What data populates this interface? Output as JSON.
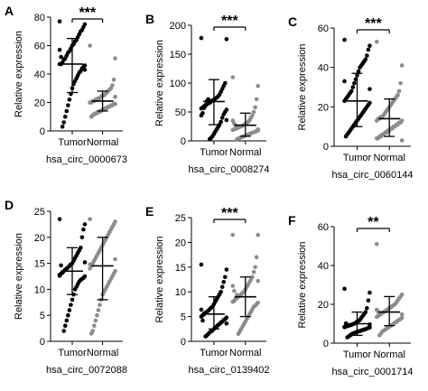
{
  "colors": {
    "tumor": "#000000",
    "normal": "#8c8c8c",
    "axis": "#000000",
    "text": "#000000"
  },
  "chart_data": [
    {
      "type": "scatter",
      "panel_label": "A",
      "xlabel": "hsa_circ_0000673",
      "ylabel": "Relative expression",
      "categories": [
        "Tumor",
        "Normal"
      ],
      "ylim": [
        0,
        80
      ],
      "yticks": [
        0,
        20,
        40,
        60,
        80
      ],
      "significance": "***",
      "series": [
        {
          "name": "Tumor",
          "mean": 47,
          "sd_low": 27,
          "sd_high": 65,
          "values": [
            77,
            75,
            73,
            71,
            70,
            68,
            66,
            64,
            63,
            61,
            60,
            58,
            56,
            55,
            53,
            51,
            50,
            48,
            47,
            47,
            46,
            45,
            44,
            42,
            41,
            39,
            37,
            35,
            33,
            30,
            26,
            22,
            18,
            14,
            10,
            6,
            3,
            52,
            57,
            43
          ]
        },
        {
          "name": "Normal",
          "mean": 21,
          "sd_low": 14,
          "sd_high": 28,
          "values": [
            60,
            51,
            36,
            32,
            30,
            29,
            28,
            27,
            26,
            25,
            25,
            24,
            23,
            23,
            22,
            22,
            21,
            21,
            20,
            20,
            19,
            19,
            18,
            18,
            17,
            17,
            16,
            16,
            15,
            15,
            14,
            14,
            13,
            13,
            12,
            12,
            11,
            10,
            20,
            24
          ]
        }
      ]
    },
    {
      "type": "scatter",
      "panel_label": "B",
      "xlabel": "hsa_circ_0008274",
      "ylabel": "Relative expression",
      "categories": [
        "Tumor",
        "Normal"
      ],
      "ylim": [
        0,
        200
      ],
      "yticks": [
        0,
        50,
        100,
        150,
        200
      ],
      "significance": "***",
      "series": [
        {
          "name": "Tumor",
          "mean": 68,
          "sd_low": 28,
          "sd_high": 106,
          "values": [
            178,
            176,
            100,
            95,
            90,
            85,
            80,
            77,
            75,
            73,
            71,
            70,
            68,
            66,
            65,
            63,
            62,
            60,
            58,
            56,
            54,
            50,
            46,
            40,
            33,
            28,
            24,
            20,
            16,
            12,
            8,
            5,
            3,
            72,
            69,
            61,
            57,
            48,
            44,
            36
          ]
        },
        {
          "name": "Normal",
          "mean": 27,
          "sd_low": 8,
          "sd_high": 48,
          "values": [
            110,
            95,
            72,
            58,
            50,
            44,
            40,
            36,
            33,
            31,
            29,
            28,
            26,
            25,
            24,
            23,
            22,
            21,
            20,
            19,
            18,
            17,
            16,
            15,
            14,
            13,
            12,
            11,
            10,
            9,
            8,
            7,
            6,
            5,
            4,
            3,
            27,
            30,
            35,
            20
          ]
        }
      ]
    },
    {
      "type": "scatter",
      "panel_label": "C",
      "xlabel": "hsa_circ_0060144",
      "ylabel": "Relative expression",
      "categories": [
        "Tumor",
        "Normal"
      ],
      "ylim": [
        0,
        60
      ],
      "yticks": [
        0,
        20,
        40,
        60
      ],
      "significance": "***",
      "series": [
        {
          "name": "Tumor",
          "mean": 23,
          "sd_low": 10,
          "sd_high": 37,
          "values": [
            54,
            51,
            49,
            46,
            44,
            43,
            42,
            41,
            40,
            38,
            36,
            34,
            32,
            30,
            28,
            27,
            26,
            25,
            24,
            23,
            22,
            21,
            20,
            19,
            18,
            17,
            16,
            15,
            14,
            13,
            12,
            11,
            10,
            9,
            8,
            7,
            6,
            5,
            33,
            29
          ]
        },
        {
          "name": "Normal",
          "mean": 14,
          "sd_low": 5,
          "sd_high": 24,
          "values": [
            53,
            41,
            32,
            28,
            26,
            25,
            24,
            23,
            22,
            21,
            20,
            19,
            18,
            17,
            16,
            15,
            15,
            14,
            14,
            13,
            13,
            12,
            12,
            11,
            11,
            10,
            10,
            9,
            9,
            8,
            8,
            7,
            7,
            6,
            6,
            5,
            5,
            4,
            4,
            3
          ]
        }
      ]
    },
    {
      "type": "scatter",
      "panel_label": "D",
      "xlabel": "hsa_circ_0072088",
      "ylabel": "Relative expression",
      "categories": [
        "Tumor",
        "Normal"
      ],
      "ylim": [
        0,
        25
      ],
      "yticks": [
        0,
        5,
        10,
        15,
        20,
        25
      ],
      "significance": "",
      "series": [
        {
          "name": "Tumor",
          "mean": 13.5,
          "sd_low": 9,
          "sd_high": 18,
          "values": [
            23.5,
            22.5,
            21.5,
            20,
            18,
            17.5,
            17,
            16.5,
            16,
            15.5,
            15,
            14.8,
            14.5,
            14.2,
            14,
            13.8,
            13.5,
            13.2,
            13,
            12.8,
            12.5,
            12.2,
            12,
            11.8,
            11.5,
            11,
            10.5,
            10,
            9,
            8,
            7,
            6,
            5,
            4,
            3,
            2,
            13.3,
            14.6,
            12.6,
            15.2
          ]
        },
        {
          "name": "Normal",
          "mean": 14.5,
          "sd_low": 8,
          "sd_high": 20,
          "values": [
            23.5,
            23,
            22.5,
            22,
            21.5,
            21,
            20.5,
            20,
            19.5,
            19,
            18.5,
            18,
            17.5,
            17,
            16.5,
            16,
            15.5,
            15,
            14.5,
            14,
            13.5,
            13,
            12.5,
            12,
            11.5,
            11,
            10.5,
            10,
            9.5,
            9,
            8,
            7,
            6,
            5,
            4,
            3,
            2,
            1.5,
            14.8,
            15.8
          ]
        }
      ]
    },
    {
      "type": "scatter",
      "panel_label": "E",
      "xlabel": "hsa_circ_0139402",
      "ylabel": "Relative expression",
      "categories": [
        "Tumor",
        "Normal"
      ],
      "ylim": [
        0,
        25
      ],
      "yticks": [
        0,
        5,
        10,
        15,
        20,
        25
      ],
      "significance": "***",
      "series": [
        {
          "name": "Tumor",
          "mean": 5.5,
          "sd_low": 2.5,
          "sd_high": 9,
          "values": [
            15.5,
            14.5,
            13,
            12,
            11,
            10,
            9.5,
            9,
            8.5,
            8,
            7.5,
            7,
            6.8,
            6.5,
            6.2,
            6,
            5.8,
            5.5,
            5.3,
            5,
            4.8,
            4.5,
            4.3,
            4,
            3.8,
            3.5,
            3.3,
            3,
            2.8,
            2.5,
            2.2,
            2,
            1.8,
            1.5,
            1.2,
            1,
            5.6,
            4.2,
            6.4,
            3.6
          ]
        },
        {
          "name": "Normal",
          "mean": 9,
          "sd_low": 5,
          "sd_high": 13,
          "values": [
            21.5,
            21.5,
            17,
            15,
            14,
            13,
            12.5,
            12,
            11.5,
            11,
            10.5,
            10,
            9.8,
            9.5,
            9.2,
            9,
            8.8,
            8.5,
            8.2,
            8,
            7.8,
            7.5,
            7.2,
            7,
            6.5,
            6,
            5.5,
            5,
            4.5,
            4,
            3.5,
            3,
            2.5,
            2,
            1.5,
            9.4,
            8.6,
            10.2,
            11.2,
            12.2
          ]
        }
      ]
    },
    {
      "type": "scatter",
      "panel_label": "F",
      "xlabel": "hsa_circ_0001714",
      "ylabel": "Relative expression",
      "categories": [
        "Tumor",
        "Normal"
      ],
      "ylim": [
        0,
        60
      ],
      "yticks": [
        0,
        20,
        40,
        60
      ],
      "significance": "**",
      "series": [
        {
          "name": "Tumor",
          "mean": 10,
          "sd_low": 4,
          "sd_high": 16,
          "values": [
            28,
            26,
            22,
            18,
            16,
            15,
            14,
            13,
            12,
            11.5,
            11,
            10.5,
            10,
            9.8,
            9.5,
            9.2,
            9,
            8.8,
            8.5,
            8.2,
            8,
            7.8,
            7.5,
            7.2,
            7,
            6.8,
            6.5,
            6.2,
            6,
            5.8,
            5.5,
            5.2,
            5,
            4.5,
            4,
            3.5,
            3,
            10.2,
            8.4,
            9.6
          ]
        },
        {
          "name": "Normal",
          "mean": 16,
          "sd_low": 9,
          "sd_high": 24,
          "values": [
            51,
            25,
            24,
            23,
            22,
            21,
            20,
            19.5,
            19,
            18.5,
            18,
            17.5,
            17,
            16.5,
            16,
            15.5,
            15,
            14.5,
            14,
            13.5,
            13,
            12.5,
            12,
            11.5,
            11,
            10.5,
            10,
            9.5,
            9,
            8.5,
            8,
            7.5,
            7,
            6.5,
            6,
            5,
            4,
            16.2,
            17.2,
            14.8
          ]
        }
      ]
    }
  ]
}
